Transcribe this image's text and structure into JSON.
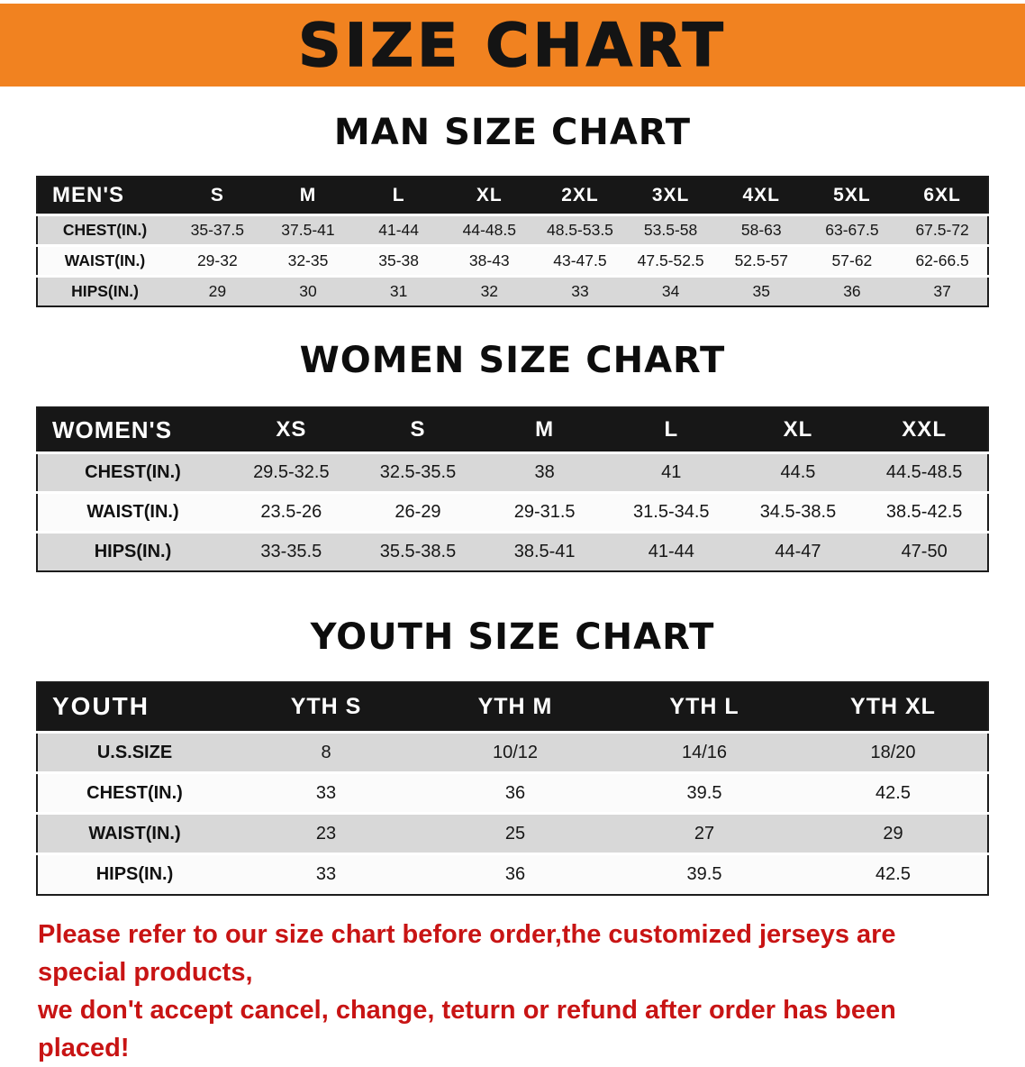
{
  "banner": {
    "title": "SIZE CHART"
  },
  "colors": {
    "banner_bg": "#F18220",
    "table_header_bg": "#171717",
    "row_alt": "#D8D8D8",
    "row_base": "#FBFBFB",
    "disclaimer_red": "#C81414",
    "text": "#121212"
  },
  "chart_data": [
    {
      "type": "table",
      "title": "MAN SIZE CHART",
      "header": [
        "MEN'S",
        "S",
        "M",
        "L",
        "XL",
        "2XL",
        "3XL",
        "4XL",
        "5XL",
        "6XL"
      ],
      "rows": [
        [
          "CHEST(IN.)",
          "35-37.5",
          "37.5-41",
          "41-44",
          "44-48.5",
          "48.5-53.5",
          "53.5-58",
          "58-63",
          "63-67.5",
          "67.5-72"
        ],
        [
          "WAIST(IN.)",
          "29-32",
          "32-35",
          "35-38",
          "38-43",
          "43-47.5",
          "47.5-52.5",
          "52.5-57",
          "57-62",
          "62-66.5"
        ],
        [
          "HIPS(IN.)",
          "29",
          "30",
          "31",
          "32",
          "33",
          "34",
          "35",
          "36",
          "37"
        ]
      ]
    },
    {
      "type": "table",
      "title": "WOMEN SIZE CHART",
      "header": [
        "WOMEN'S",
        "XS",
        "S",
        "M",
        "L",
        "XL",
        "XXL"
      ],
      "rows": [
        [
          "CHEST(IN.)",
          "29.5-32.5",
          "32.5-35.5",
          "38",
          "41",
          "44.5",
          "44.5-48.5"
        ],
        [
          "WAIST(IN.)",
          "23.5-26",
          "26-29",
          "29-31.5",
          "31.5-34.5",
          "34.5-38.5",
          "38.5-42.5"
        ],
        [
          "HIPS(IN.)",
          "33-35.5",
          "35.5-38.5",
          "38.5-41",
          "41-44",
          "44-47",
          "47-50"
        ]
      ]
    },
    {
      "type": "table",
      "title": "YOUTH SIZE CHART",
      "header": [
        "YOUTH",
        "YTH S",
        "YTH M",
        "YTH L",
        "YTH XL"
      ],
      "rows": [
        [
          "U.S.SIZE",
          "8",
          "10/12",
          "14/16",
          "18/20"
        ],
        [
          "CHEST(IN.)",
          "33",
          "36",
          "39.5",
          "42.5"
        ],
        [
          "WAIST(IN.)",
          "23",
          "25",
          "27",
          "29"
        ],
        [
          "HIPS(IN.)",
          "33",
          "36",
          "39.5",
          "42.5"
        ]
      ]
    }
  ],
  "footer": {
    "lines": [
      "Please refer to our size chart before order,the customized jerseys are special products,",
      "we don't accept cancel, change, teturn or refund after order has been placed!"
    ]
  }
}
